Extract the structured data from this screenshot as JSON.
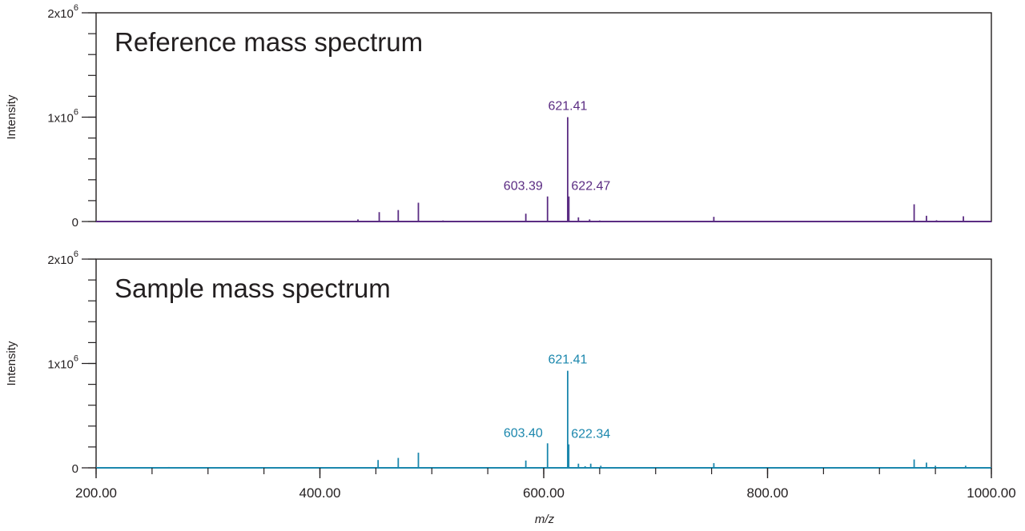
{
  "chart_data": [
    {
      "type": "line",
      "title": "Reference mass spectrum",
      "xlabel": "",
      "ylabel": "Intensity",
      "xlim": [
        200,
        1000
      ],
      "ylim": [
        0,
        2000000
      ],
      "y_ticks": [
        {
          "value": 0,
          "base": "0",
          "exp": ""
        },
        {
          "value": 1000000,
          "base": "1x10",
          "exp": "6"
        },
        {
          "value": 2000000,
          "base": "2x10",
          "exp": "6"
        }
      ],
      "y_minor_step": 200000,
      "color": "#5b2c83",
      "grid": false,
      "peaks": [
        {
          "mz": 434,
          "intensity": 20000
        },
        {
          "mz": 453,
          "intensity": 90000
        },
        {
          "mz": 470,
          "intensity": 110000
        },
        {
          "mz": 488,
          "intensity": 180000
        },
        {
          "mz": 510,
          "intensity": 10000
        },
        {
          "mz": 584,
          "intensity": 75000
        },
        {
          "mz": 603.39,
          "intensity": 240000
        },
        {
          "mz": 621.41,
          "intensity": 1000000
        },
        {
          "mz": 622.47,
          "intensity": 240000
        },
        {
          "mz": 631,
          "intensity": 40000
        },
        {
          "mz": 641,
          "intensity": 20000
        },
        {
          "mz": 650,
          "intensity": 10000
        },
        {
          "mz": 752,
          "intensity": 45000
        },
        {
          "mz": 848,
          "intensity": 5000
        },
        {
          "mz": 931,
          "intensity": 165000
        },
        {
          "mz": 942,
          "intensity": 55000
        },
        {
          "mz": 951,
          "intensity": 12000
        },
        {
          "mz": 958,
          "intensity": 8000
        },
        {
          "mz": 975,
          "intensity": 50000
        }
      ],
      "annotations": [
        {
          "text": "621.41",
          "mz": 621.41,
          "intensity": 1000000,
          "anchor": "middle"
        },
        {
          "text": "603.39",
          "mz": 603.39,
          "intensity": 240000,
          "anchor": "end"
        },
        {
          "text": "622.47",
          "mz": 622.47,
          "intensity": 240000,
          "anchor": "start"
        }
      ]
    },
    {
      "type": "line",
      "title": "Sample mass spectrum",
      "xlabel": "m/z",
      "ylabel": "Intensity",
      "xlim": [
        200,
        1000
      ],
      "ylim": [
        0,
        2000000
      ],
      "x_ticks": [
        {
          "value": 200,
          "label": "200.00"
        },
        {
          "value": 400,
          "label": "400.00"
        },
        {
          "value": 600,
          "label": "600.00"
        },
        {
          "value": 800,
          "label": "800.00"
        },
        {
          "value": 1000,
          "label": "1000.00"
        }
      ],
      "x_minor_step": 50,
      "y_ticks": [
        {
          "value": 0,
          "base": "0",
          "exp": ""
        },
        {
          "value": 1000000,
          "base": "1x10",
          "exp": "6"
        },
        {
          "value": 2000000,
          "base": "2x10",
          "exp": "6"
        }
      ],
      "y_minor_step": 200000,
      "color": "#1b87ad",
      "grid": false,
      "peaks": [
        {
          "mz": 265,
          "intensity": 8000
        },
        {
          "mz": 277,
          "intensity": 6000
        },
        {
          "mz": 452,
          "intensity": 75000
        },
        {
          "mz": 470,
          "intensity": 95000
        },
        {
          "mz": 488,
          "intensity": 145000
        },
        {
          "mz": 510,
          "intensity": 6000
        },
        {
          "mz": 584,
          "intensity": 70000
        },
        {
          "mz": 603.4,
          "intensity": 235000
        },
        {
          "mz": 621.41,
          "intensity": 930000
        },
        {
          "mz": 622.34,
          "intensity": 225000
        },
        {
          "mz": 631,
          "intensity": 40000
        },
        {
          "mz": 637,
          "intensity": 15000
        },
        {
          "mz": 642,
          "intensity": 40000
        },
        {
          "mz": 651,
          "intensity": 20000
        },
        {
          "mz": 752,
          "intensity": 45000
        },
        {
          "mz": 931,
          "intensity": 80000
        },
        {
          "mz": 942,
          "intensity": 50000
        },
        {
          "mz": 950,
          "intensity": 20000
        },
        {
          "mz": 977,
          "intensity": 20000
        }
      ],
      "annotations": [
        {
          "text": "621.41",
          "mz": 621.41,
          "intensity": 930000,
          "anchor": "middle"
        },
        {
          "text": "603.40",
          "mz": 603.4,
          "intensity": 235000,
          "anchor": "end"
        },
        {
          "text": "622.34",
          "mz": 622.34,
          "intensity": 225000,
          "anchor": "start"
        }
      ]
    }
  ]
}
